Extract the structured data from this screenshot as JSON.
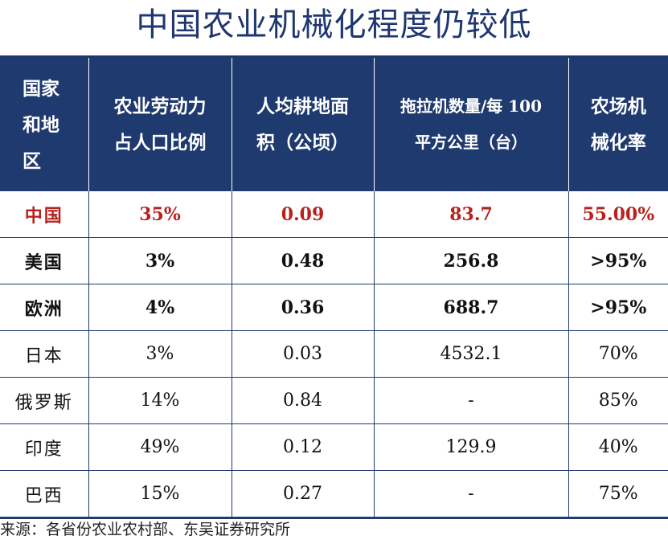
{
  "title": "中国农业机械化程度仍较低",
  "table": {
    "headers": [
      [
        "国家",
        "和地",
        "区"
      ],
      [
        "农业劳动力",
        "占人口比例"
      ],
      [
        "人均耕地面",
        "积（公顷）"
      ],
      [
        "拖拉机数量/每 100",
        "平方公里（台）"
      ],
      [
        "农场机",
        "械化率"
      ]
    ],
    "rows": [
      [
        "中国",
        "35%",
        "0.09",
        "83.7",
        "55.00%"
      ],
      [
        "美国",
        "3%",
        "0.48",
        "256.8",
        ">95%"
      ],
      [
        "欧洲",
        "4%",
        "0.36",
        "688.7",
        ">95%"
      ],
      [
        "日本",
        "3%",
        "0.03",
        "4532.1",
        "70%"
      ],
      [
        "俄罗斯",
        "14%",
        "0.84",
        "-",
        "85%"
      ],
      [
        "印度",
        "49%",
        "0.12",
        "129.9",
        "40%"
      ],
      [
        "巴西",
        "15%",
        "0.27",
        "-",
        "75%"
      ]
    ]
  },
  "source": "来源：各省份农业农村部、东吴证券研究所",
  "colors": {
    "header_bg": "#1f3a6e",
    "title": "#1f3670",
    "highlight": "#b8221e"
  }
}
